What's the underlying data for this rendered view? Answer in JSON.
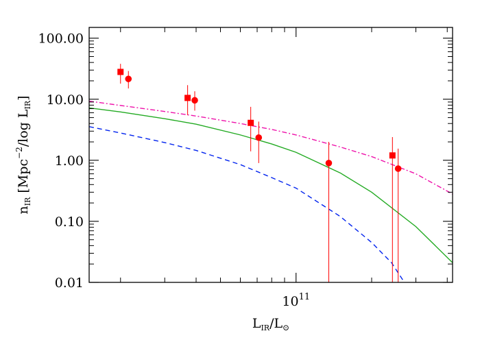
{
  "chart_data": {
    "type": "scatter",
    "xlabel_main": "L",
    "xlabel_sub": "IR",
    "xlabel_slash": "/L",
    "xlabel_sun": "⊙",
    "ylabel_prefix": "n",
    "ylabel_sub1": "IR",
    "ylabel_mid": " [Mpc",
    "ylabel_exp": "−2",
    "ylabel_tail": "/log L",
    "ylabel_sub2": "IR",
    "ylabel_close": "]",
    "x_tick_base": "10",
    "x_tick_exp": "11",
    "y_tick_labels": [
      "100.00",
      "10.00",
      "1.00",
      "0.10",
      "0.01"
    ],
    "x_scale": "log",
    "y_scale": "log",
    "xlim": [
      15000000000.0,
      420000000000.0
    ],
    "ylim": [
      0.01,
      150
    ],
    "grid": false,
    "series": [
      {
        "marker": "square",
        "color": "#ff0000",
        "points": [
          {
            "x": 20000000000.0,
            "y": 28,
            "ylo": 18,
            "yhi": 38
          },
          {
            "x": 37000000000.0,
            "y": 10.5,
            "ylo": 5.5,
            "yhi": 17
          },
          {
            "x": 66000000000.0,
            "y": 4.1,
            "ylo": 1.4,
            "yhi": 7.5
          },
          {
            "x": 242000000000.0,
            "y": 1.2,
            "ylo": 0.01,
            "yhi": 2.4
          }
        ]
      },
      {
        "marker": "circle",
        "color": "#ff0000",
        "points": [
          {
            "x": 21500000000.0,
            "y": 21.5,
            "ylo": 15,
            "yhi": 29
          },
          {
            "x": 39500000000.0,
            "y": 9.6,
            "ylo": 6.5,
            "yhi": 13.5
          },
          {
            "x": 71000000000.0,
            "y": 2.35,
            "ylo": 0.9,
            "yhi": 4.3
          },
          {
            "x": 135000000000.0,
            "y": 0.9,
            "ylo": 0.01,
            "yhi": 2.0
          },
          {
            "x": 255000000000.0,
            "y": 0.73,
            "ylo": 0.01,
            "yhi": 1.55
          }
        ]
      }
    ],
    "curves": [
      {
        "style": "solid",
        "color": "#22aa22",
        "x": [
          15000000000.0,
          20000000000.0,
          30000000000.0,
          40000000000.0,
          60000000000.0,
          80000000000.0,
          100000000000.0,
          150000000000.0,
          200000000000.0,
          300000000000.0,
          420000000000.0
        ],
        "y": [
          7.2,
          6.2,
          4.8,
          3.9,
          2.6,
          1.85,
          1.35,
          0.62,
          0.3,
          0.082,
          0.021
        ]
      },
      {
        "style": "dashed",
        "color": "#0022ee",
        "x": [
          15000000000.0,
          20000000000.0,
          30000000000.0,
          40000000000.0,
          60000000000.0,
          80000000000.0,
          100000000000.0,
          150000000000.0,
          200000000000.0,
          240000000000.0,
          270000000000.0
        ],
        "y": [
          3.55,
          2.8,
          1.95,
          1.45,
          0.85,
          0.52,
          0.35,
          0.12,
          0.045,
          0.021,
          0.01
        ]
      },
      {
        "style": "dashdot",
        "color": "#ee11aa",
        "x": [
          15000000000.0,
          20000000000.0,
          30000000000.0,
          40000000000.0,
          60000000000.0,
          80000000000.0,
          100000000000.0,
          150000000000.0,
          200000000000.0,
          300000000000.0,
          420000000000.0
        ],
        "y": [
          9.3,
          7.9,
          6.3,
          5.3,
          4.0,
          3.2,
          2.6,
          1.65,
          1.15,
          0.6,
          0.28
        ]
      }
    ]
  }
}
